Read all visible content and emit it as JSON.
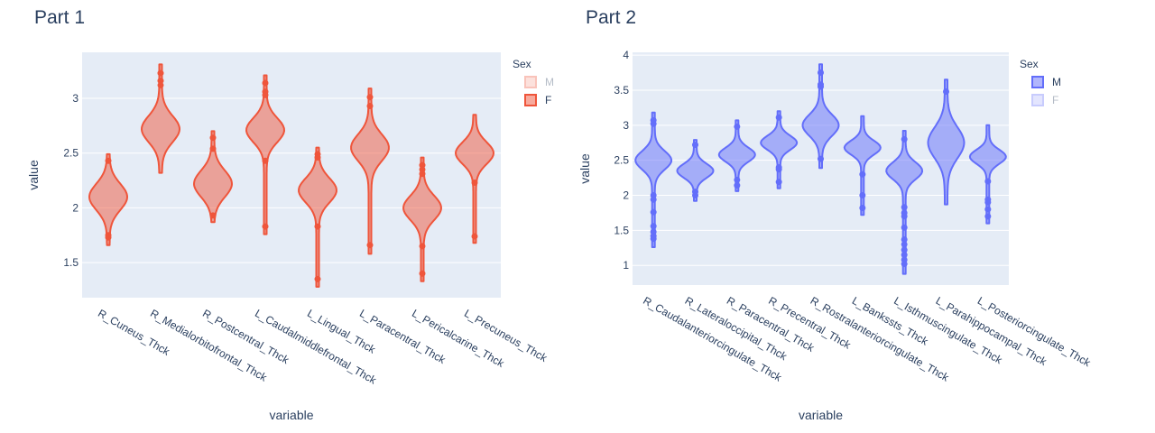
{
  "chart_data": [
    {
      "type": "violin",
      "title": "Part 1",
      "xlabel": "variable",
      "ylabel": "value",
      "ylim": [
        1.18,
        3.42
      ],
      "yticks": [
        1.5,
        2,
        2.5,
        3
      ],
      "ytick_labels": [
        "1.5",
        "2",
        "2.5",
        "3"
      ],
      "grid": true,
      "legend": {
        "title": "Sex",
        "placement": "right",
        "entries": [
          {
            "label": "M",
            "active": false
          },
          {
            "label": "F",
            "active": true
          }
        ]
      },
      "series_name": "F",
      "color": "#ef553b",
      "categories": [
        "R_Cuneus_Thck",
        "R_Medialorbitofrontal_Thck",
        "R_Postcentral_Thck",
        "L_Caudalmiddlefrontal_Thck",
        "L_Lingual_Thck",
        "L_Paracentral_Thck",
        "L_Pericalcarine_Thck",
        "L_Precuneus_Thck"
      ],
      "violins": [
        {
          "min": 1.66,
          "max": 2.49,
          "mode": 2.1,
          "sd": 0.12,
          "points": [
            2.43,
            1.75,
            1.73
          ]
        },
        {
          "min": 2.32,
          "max": 3.31,
          "mode": 2.72,
          "sd": 0.12,
          "points": [
            3.23,
            3.16,
            3.12
          ]
        },
        {
          "min": 1.87,
          "max": 2.7,
          "mode": 2.22,
          "sd": 0.12,
          "points": [
            2.64,
            2.54,
            1.93
          ]
        },
        {
          "min": 1.76,
          "max": 3.21,
          "mode": 2.71,
          "sd": 0.11,
          "points": [
            3.14,
            3.06,
            3.03,
            2.43,
            1.83
          ]
        },
        {
          "min": 1.28,
          "max": 2.55,
          "mode": 2.16,
          "sd": 0.11,
          "points": [
            2.49,
            2.46,
            1.83,
            1.35
          ]
        },
        {
          "min": 1.58,
          "max": 3.09,
          "mode": 2.55,
          "sd": 0.12,
          "points": [
            3.01,
            2.93,
            1.66
          ]
        },
        {
          "min": 1.33,
          "max": 2.46,
          "mode": 2.0,
          "sd": 0.11,
          "points": [
            2.39,
            2.35,
            2.31,
            1.65,
            1.4
          ]
        },
        {
          "min": 1.68,
          "max": 2.85,
          "mode": 2.5,
          "sd": 0.1,
          "points": [
            2.23,
            1.74
          ]
        }
      ]
    },
    {
      "type": "violin",
      "title": "Part 2",
      "xlabel": "variable",
      "ylabel": "value",
      "ylim": [
        0.72,
        4.04
      ],
      "yticks": [
        1,
        1.5,
        2,
        2.5,
        3,
        3.5,
        4
      ],
      "ytick_labels": [
        "1",
        "1.5",
        "2",
        "2.5",
        "3",
        "3.5",
        "4"
      ],
      "grid": true,
      "legend": {
        "title": "Sex",
        "placement": "right",
        "entries": [
          {
            "label": "M",
            "active": true
          },
          {
            "label": "F",
            "active": false
          }
        ]
      },
      "series_name": "M",
      "color": "#636efa",
      "categories": [
        "R_Caudalanteriorcingulate_Thck",
        "R_Lateraloccipital_Thck",
        "R_Paracentral_Thck",
        "R_Precentral_Thck",
        "R_Rostralanteriorcingulate_Thck",
        "L_Bankssts_Thck",
        "L_Isthmuscingulate_Thck",
        "L_Parahippocampal_Thck",
        "L_Posteriorcingulate_Thck"
      ],
      "violins": [
        {
          "min": 1.26,
          "max": 3.18,
          "mode": 2.5,
          "sd": 0.13,
          "points": [
            3.07,
            3.02,
            2.0,
            1.94,
            1.76,
            1.56,
            1.48,
            1.42,
            1.38
          ]
        },
        {
          "min": 1.92,
          "max": 2.79,
          "mode": 2.35,
          "sd": 0.1,
          "points": [
            2.72,
            2.05,
            2.0
          ]
        },
        {
          "min": 2.06,
          "max": 3.07,
          "mode": 2.58,
          "sd": 0.1,
          "points": [
            2.98,
            2.22,
            2.14
          ]
        },
        {
          "min": 2.1,
          "max": 3.2,
          "mode": 2.75,
          "sd": 0.1,
          "points": [
            3.11,
            2.4,
            2.37,
            2.19
          ]
        },
        {
          "min": 2.39,
          "max": 3.87,
          "mode": 3.0,
          "sd": 0.15,
          "points": [
            3.75,
            3.58,
            3.55,
            2.52
          ]
        },
        {
          "min": 1.72,
          "max": 3.13,
          "mode": 2.68,
          "sd": 0.1,
          "points": [
            2.3,
            2.0,
            1.82
          ]
        },
        {
          "min": 0.88,
          "max": 2.92,
          "mode": 2.35,
          "sd": 0.12,
          "points": [
            2.8,
            1.83,
            1.75,
            1.7,
            1.54,
            1.37,
            1.3,
            1.22,
            1.15,
            1.08,
            1.02
          ]
        },
        {
          "min": 1.87,
          "max": 3.65,
          "mode": 2.75,
          "sd": 0.22,
          "points": [
            3.48
          ]
        },
        {
          "min": 1.6,
          "max": 3.0,
          "mode": 2.55,
          "sd": 0.1,
          "points": [
            2.2,
            1.94,
            1.9,
            1.8,
            1.7
          ]
        }
      ]
    }
  ]
}
